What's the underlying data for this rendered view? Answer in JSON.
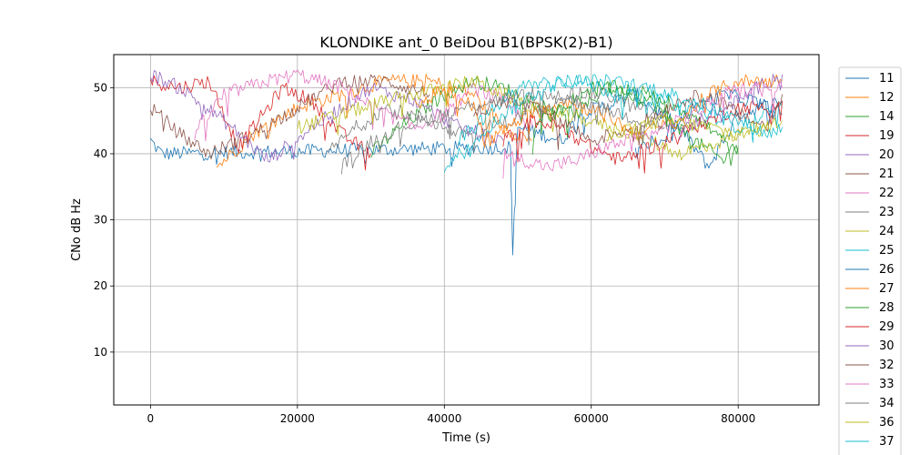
{
  "chart_data": {
    "type": "line",
    "title": "KLONDIKE ant_0 BeiDou B1(BPSK(2)-B1)",
    "xlabel": "Time (s)",
    "ylabel": "CNo dB Hz",
    "xlim": [
      -5000,
      91000
    ],
    "ylim": [
      2,
      55
    ],
    "xticks": [
      0,
      20000,
      40000,
      60000,
      80000
    ],
    "yticks": [
      10,
      20,
      30,
      40,
      50
    ],
    "grid": true,
    "legend_position": "right (outside plot, clipped)",
    "series": [
      {
        "name": "11",
        "color": "#1f77b4",
        "segments": [
          [
            [
              0,
              42
            ],
            [
              1500,
              40
            ],
            [
              49000,
              41
            ],
            [
              49300,
              25
            ],
            [
              50000,
              44
            ],
            [
              56000,
              42
            ],
            [
              58500,
              46
            ],
            [
              66000,
              49
            ],
            [
              72000,
              44
            ],
            [
              76000,
              38
            ],
            [
              80000,
              46
            ],
            [
              86000,
              48
            ]
          ]
        ]
      },
      {
        "name": "12",
        "color": "#ff7f0e",
        "segments": [
          [
            [
              9000,
              38
            ],
            [
              14000,
              43
            ],
            [
              20000,
              47
            ],
            [
              26000,
              49
            ],
            [
              32000,
              51
            ],
            [
              38000,
              51
            ],
            [
              44000,
              49
            ],
            [
              48000,
              44
            ],
            [
              52000,
              42
            ]
          ]
        ]
      },
      {
        "name": "14",
        "color": "#2ca02c",
        "segments": [
          [
            [
              30000,
              40
            ],
            [
              34000,
              44
            ],
            [
              40000,
              49
            ],
            [
              44000,
              51
            ],
            [
              48000,
              50
            ],
            [
              54000,
              47
            ],
            [
              58000,
              46
            ],
            [
              62000,
              50
            ],
            [
              68000,
              48
            ],
            [
              74000,
              42
            ],
            [
              78000,
              39
            ],
            [
              80000,
              41
            ]
          ]
        ]
      },
      {
        "name": "19",
        "color": "#d62728",
        "segments": [
          [
            [
              0,
              51
            ],
            [
              4000,
              50
            ],
            [
              8000,
              51
            ],
            [
              12000,
              41
            ],
            [
              14000,
              44
            ],
            [
              18000,
              50
            ],
            [
              22000,
              48
            ],
            [
              26000,
              43
            ],
            [
              30000,
              40
            ]
          ]
        ]
      },
      {
        "name": "20",
        "color": "#9467bd",
        "segments": [
          [
            [
              0,
              52
            ],
            [
              4000,
              50
            ],
            [
              10000,
              45
            ],
            [
              16000,
              39
            ],
            [
              22000,
              44
            ],
            [
              30000,
              50
            ],
            [
              36000,
              48
            ],
            [
              42000,
              44
            ],
            [
              48000,
              42
            ]
          ]
        ]
      },
      {
        "name": "21",
        "color": "#8c564b",
        "segments": [
          [
            [
              0,
              47
            ],
            [
              4000,
              43
            ],
            [
              8000,
              40
            ],
            [
              14000,
              43
            ],
            [
              20000,
              47
            ],
            [
              26000,
              51
            ],
            [
              32000,
              51
            ],
            [
              38000,
              49
            ]
          ]
        ]
      },
      {
        "name": "22",
        "color": "#e377c2",
        "segments": [
          [
            [
              6000,
              43
            ],
            [
              10000,
              49
            ],
            [
              16000,
              51
            ],
            [
              20000,
              52
            ],
            [
              26000,
              50
            ],
            [
              32000,
              46
            ],
            [
              36000,
              44
            ],
            [
              40000,
              46
            ],
            [
              44000,
              50
            ],
            [
              48000,
              48
            ],
            [
              52000,
              44
            ]
          ]
        ]
      },
      {
        "name": "23",
        "color": "#7f7f7f",
        "segments": [
          [
            [
              24000,
              40
            ],
            [
              28000,
              44
            ],
            [
              32000,
              47
            ],
            [
              38000,
              45
            ],
            [
              42000,
              43
            ],
            [
              46000,
              44
            ],
            [
              52000,
              46
            ],
            [
              56000,
              49
            ],
            [
              62000,
              49
            ],
            [
              68000,
              46
            ],
            [
              72000,
              44
            ]
          ]
        ]
      },
      {
        "name": "24",
        "color": "#bcbd22",
        "segments": [
          [
            [
              20000,
              44
            ],
            [
              26000,
              46
            ],
            [
              32000,
              48
            ],
            [
              36000,
              49
            ],
            [
              40000,
              50
            ],
            [
              44000,
              51
            ],
            [
              48000,
              49
            ],
            [
              54000,
              46
            ],
            [
              60000,
              45
            ],
            [
              66000,
              43
            ],
            [
              72000,
              40
            ],
            [
              78000,
              42
            ],
            [
              84000,
              45
            ]
          ]
        ]
      },
      {
        "name": "25",
        "color": "#17becf",
        "segments": [
          [
            [
              42000,
              42
            ],
            [
              46000,
              46
            ],
            [
              50000,
              50
            ],
            [
              54000,
              51
            ],
            [
              58000,
              51
            ],
            [
              64000,
              49
            ],
            [
              70000,
              48
            ],
            [
              76000,
              46
            ],
            [
              80000,
              44
            ],
            [
              84000,
              46
            ],
            [
              86000,
              47
            ]
          ]
        ]
      },
      {
        "name": "26",
        "color": "#1f77b4",
        "segments": [
          [
            [
              66000,
              40
            ],
            [
              70000,
              43
            ],
            [
              74000,
              47
            ],
            [
              78000,
              49
            ],
            [
              82000,
              48
            ],
            [
              86000,
              46
            ]
          ]
        ]
      },
      {
        "name": "27",
        "color": "#ff7f0e",
        "segments": [
          [
            [
              36000,
              47
            ],
            [
              40000,
              50
            ],
            [
              44000,
              47
            ],
            [
              46000,
              42
            ],
            [
              50000,
              45
            ],
            [
              56000,
              48
            ],
            [
              62000,
              46
            ],
            [
              66000,
              43
            ],
            [
              72000,
              45
            ],
            [
              76000,
              49
            ],
            [
              80000,
              51
            ],
            [
              86000,
              51
            ]
          ]
        ]
      },
      {
        "name": "28",
        "color": "#2ca02c",
        "segments": [
          [
            [
              52000,
              44
            ],
            [
              56000,
              47
            ],
            [
              60000,
              50
            ],
            [
              64000,
              50
            ],
            [
              68000,
              49
            ],
            [
              72000,
              47
            ],
            [
              76000,
              44
            ],
            [
              80000,
              40
            ]
          ]
        ]
      },
      {
        "name": "29",
        "color": "#d62728",
        "segments": [
          [
            [
              48000,
              42
            ],
            [
              52000,
              45
            ],
            [
              56000,
              44
            ],
            [
              60000,
              41
            ],
            [
              64000,
              39
            ],
            [
              70000,
              42
            ],
            [
              76000,
              45
            ],
            [
              80000,
              47
            ],
            [
              84000,
              47
            ],
            [
              86000,
              48
            ]
          ]
        ]
      },
      {
        "name": "30",
        "color": "#9467bd",
        "segments": [
          [
            [
              72000,
              43
            ],
            [
              76000,
              46
            ],
            [
              80000,
              48
            ],
            [
              84000,
              51
            ],
            [
              86000,
              52
            ]
          ]
        ]
      },
      {
        "name": "32",
        "color": "#8c564b",
        "segments": [
          [
            [
              44000,
              46
            ],
            [
              48000,
              48
            ],
            [
              52000,
              47
            ],
            [
              56000,
              45
            ],
            [
              60000,
              42
            ],
            [
              66000,
              44
            ],
            [
              72000,
              48
            ],
            [
              76000,
              49
            ],
            [
              80000,
              46
            ],
            [
              84000,
              44
            ],
            [
              86000,
              49
            ]
          ]
        ]
      },
      {
        "name": "33",
        "color": "#e377c2",
        "segments": [
          [
            [
              48000,
              40
            ],
            [
              54000,
              38
            ],
            [
              58000,
              39
            ],
            [
              62000,
              41
            ],
            [
              68000,
              43
            ],
            [
              74000,
              46
            ],
            [
              78000,
              49
            ],
            [
              82000,
              50
            ],
            [
              86000,
              50
            ]
          ]
        ]
      },
      {
        "name": "34",
        "color": "#7f7f7f",
        "segments": [
          [
            [
              26000,
              38
            ],
            [
              30000,
              42
            ],
            [
              34000,
              44
            ],
            [
              40000,
              46
            ],
            [
              46000,
              48
            ],
            [
              52000,
              49
            ],
            [
              58000,
              48
            ],
            [
              64000,
              46
            ],
            [
              70000,
              44
            ]
          ]
        ]
      },
      {
        "name": "36",
        "color": "#bcbd22",
        "segments": [
          [
            [
              62000,
              42
            ],
            [
              66000,
              44
            ],
            [
              70000,
              45
            ],
            [
              76000,
              44
            ],
            [
              80000,
              43
            ],
            [
              84000,
              44
            ],
            [
              86000,
              45
            ]
          ]
        ]
      },
      {
        "name": "37",
        "color": "#17becf",
        "segments": [
          [
            [
              40000,
              38
            ],
            [
              44000,
              42
            ],
            [
              48000,
              46
            ],
            [
              52000,
              49
            ],
            [
              56000,
              51
            ],
            [
              62000,
              51
            ],
            [
              68000,
              50
            ],
            [
              74000,
              48
            ],
            [
              80000,
              45
            ],
            [
              84000,
              43
            ],
            [
              86000,
              44
            ]
          ]
        ]
      }
    ]
  }
}
